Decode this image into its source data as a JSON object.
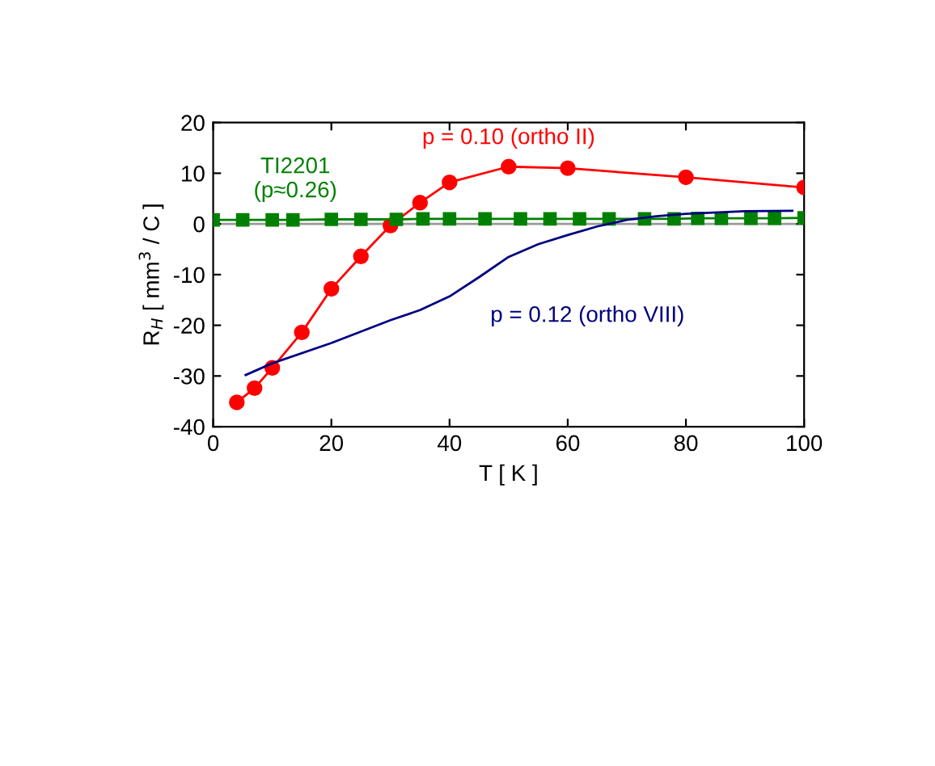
{
  "chart_data": {
    "type": "line",
    "xlabel": "T [ K ]",
    "ylabel": "R$_{H}$ [ mm$^{3}$ / C ]",
    "xlim": [
      0,
      100
    ],
    "ylim": [
      -40,
      20
    ],
    "xticks": [
      0,
      20,
      40,
      60,
      80,
      100
    ],
    "yticks": [
      -40,
      -30,
      -20,
      -10,
      0,
      10,
      20
    ],
    "grid": false,
    "legend": false,
    "ref_lines": [
      {
        "axis": "y",
        "value": 0,
        "color": "#999999"
      }
    ],
    "series": [
      {
        "name": "p = 0.10 (ortho II)",
        "color": "#ff0000",
        "marker": "circle",
        "x": [
          4,
          7,
          10,
          15,
          20,
          25,
          30,
          35,
          40,
          50,
          60,
          80,
          100
        ],
        "values": [
          -35.2,
          -32.4,
          -28.4,
          -21.4,
          -12.8,
          -6.4,
          -0.3,
          4.2,
          8.2,
          11.3,
          11,
          9.2,
          7.2
        ]
      },
      {
        "name": "TI2201\n(p≈0.26)",
        "color": "#008000",
        "marker": "square",
        "x": [
          0,
          5,
          10,
          13.5,
          20,
          25,
          31,
          35.5,
          40,
          46,
          52,
          57,
          62,
          67,
          73,
          78,
          82,
          86,
          91,
          95,
          100
        ],
        "values": [
          0.8,
          0.8,
          0.8,
          0.8,
          0.9,
          0.9,
          0.9,
          1,
          1,
          1,
          1,
          1,
          1,
          1,
          1,
          1,
          1.1,
          1.1,
          1.1,
          1.1,
          1.2
        ]
      },
      {
        "name": "p = 0.12 (ortho VIII)",
        "color": "#000080",
        "marker": "none",
        "x": [
          5.5,
          10,
          20,
          30,
          35,
          40,
          45,
          50,
          55,
          60,
          65,
          70,
          75,
          80,
          90,
          98
        ],
        "values": [
          -29.8,
          -27.5,
          -23.5,
          -19,
          -17,
          -14.3,
          -10.5,
          -6.5,
          -4,
          -2.2,
          -0.5,
          0.8,
          1.5,
          2,
          2.5,
          2.6
        ]
      }
    ]
  }
}
